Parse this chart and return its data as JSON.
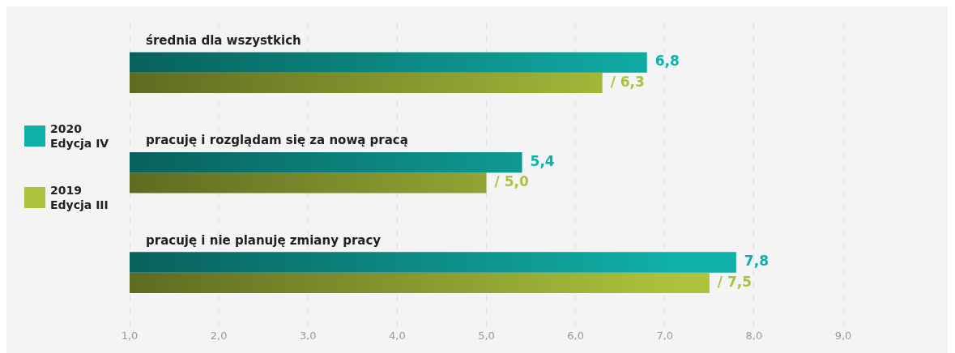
{
  "chart_data": {
    "type": "bar",
    "orientation": "horizontal",
    "categories": [
      "średnia dla wszystkich",
      "pracuję i rozglądam się za nową pracą",
      "pracuję i nie planuję zmiany pracy"
    ],
    "series": [
      {
        "name": "2020 Edycja IV",
        "color": "#10b0a8",
        "values": [
          6.8,
          5.4,
          7.8
        ],
        "value_labels": [
          "6,8",
          "5,4",
          "7,8"
        ]
      },
      {
        "name": "2019 Edycja III",
        "color": "#adc23c",
        "values": [
          6.3,
          5.0,
          7.5
        ],
        "value_labels": [
          "/ 6,3",
          "/ 5,0",
          "/ 7,5"
        ]
      }
    ],
    "xlim": [
      1,
      9
    ],
    "xticks": [
      {
        "value": 1,
        "label": "1,0"
      },
      {
        "value": 2,
        "label": "2,0"
      },
      {
        "value": 3,
        "label": "3,0"
      },
      {
        "value": 4,
        "label": "4,0"
      },
      {
        "value": 5,
        "label": "5,0"
      },
      {
        "value": 6,
        "label": "6,0"
      },
      {
        "value": 7,
        "label": "7,0"
      },
      {
        "value": 8,
        "label": "8,0"
      },
      {
        "value": 9,
        "label": "9,0"
      }
    ],
    "grid": "x",
    "legend": "left",
    "data_labels": true
  }
}
